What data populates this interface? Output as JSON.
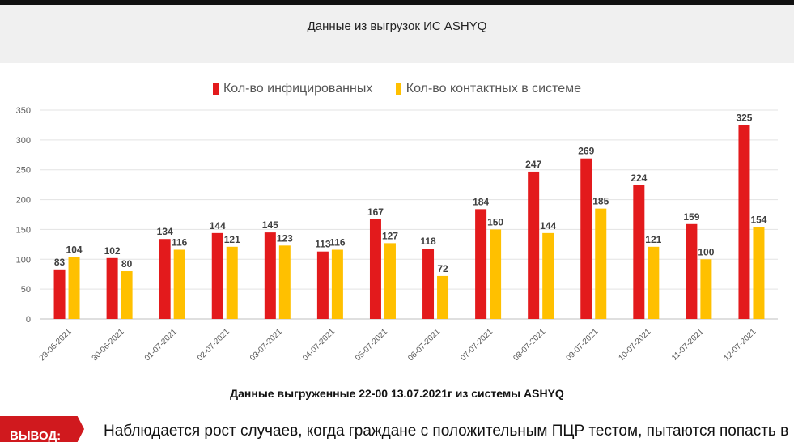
{
  "header": {
    "title": "Данные из выгрузок ИС ASHYQ"
  },
  "legend": {
    "infected": "Кол-во инфицированных",
    "contacts": "Кол-во контактных в системе"
  },
  "colors": {
    "infected": "#e31a1c",
    "contacts": "#ffc000",
    "accent": "#d0191e"
  },
  "chart_data": {
    "type": "bar",
    "categories": [
      "29-06-2021",
      "30-06-2021",
      "01-07-2021",
      "02-07-2021",
      "03-07-2021",
      "04-07-2021",
      "05-07-2021",
      "06-07-2021",
      "07-07-2021",
      "08-07-2021",
      "09-07-2021",
      "10-07-2021",
      "11-07-2021",
      "12-07-2021"
    ],
    "series": [
      {
        "name": "Кол-во инфицированных",
        "values": [
          83,
          102,
          134,
          144,
          145,
          113,
          167,
          118,
          184,
          247,
          269,
          224,
          159,
          325
        ]
      },
      {
        "name": "Кол-во контактных в системе",
        "values": [
          104,
          80,
          116,
          121,
          123,
          116,
          127,
          72,
          150,
          144,
          185,
          121,
          100,
          154
        ]
      }
    ],
    "yticks": [
      0,
      50,
      100,
      150,
      200,
      250,
      300,
      350
    ],
    "ylim": [
      0,
      350
    ],
    "grid": true,
    "legend_position": "top-center"
  },
  "footnote": "Данные выгруженные 22-00 13.07.2021г из системы ASHYQ",
  "conclusion": {
    "label": "ВЫВОД:",
    "text": "Наблюдается рост случаев, когда граждане с положительным ПЦР тестом, пытаются попасть в"
  }
}
